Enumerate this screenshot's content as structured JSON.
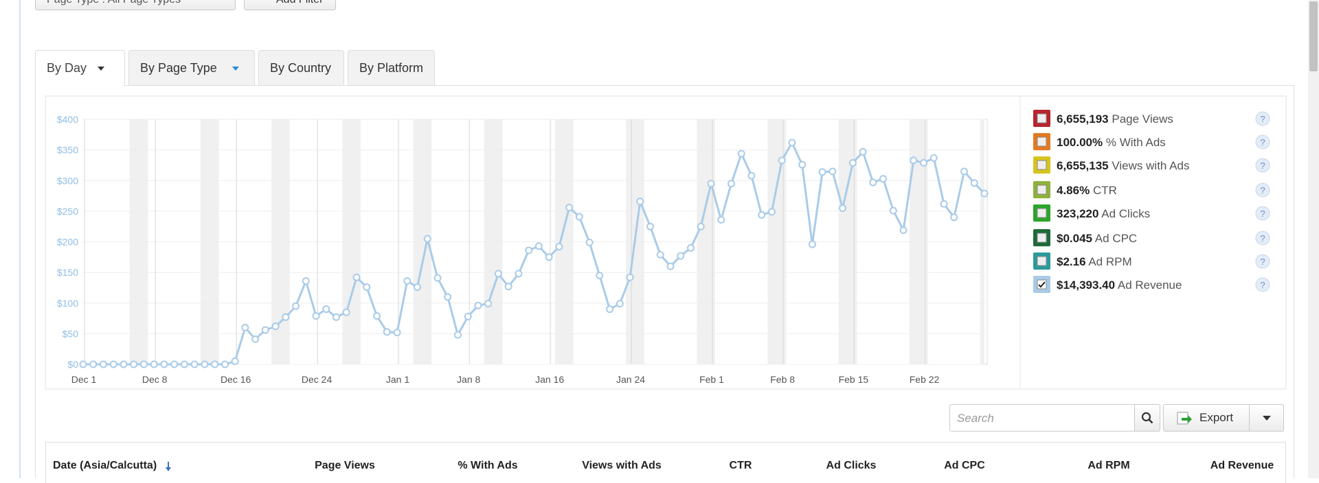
{
  "filters": {
    "page_type": "Page Type : All Page Types",
    "add_filter": "Add Filter"
  },
  "tabs": [
    "By Day",
    "By Page Type",
    "By Country",
    "By Platform"
  ],
  "chart_data": {
    "type": "line",
    "color": "#a9cbe8",
    "categories": [
      "Dec 1",
      null,
      null,
      null,
      null,
      null,
      null,
      "Dec 8",
      null,
      null,
      null,
      null,
      null,
      null,
      null,
      "Dec 16",
      null,
      null,
      null,
      null,
      null,
      null,
      null,
      "Dec 24",
      null,
      null,
      null,
      null,
      null,
      null,
      null,
      "Jan 1",
      null,
      null,
      null,
      null,
      null,
      null,
      "Jan 8",
      null,
      null,
      null,
      null,
      null,
      null,
      null,
      "Jan 16",
      null,
      null,
      null,
      null,
      null,
      null,
      null,
      "Jan 24",
      null,
      null,
      null,
      null,
      null,
      null,
      null,
      "Feb 1",
      null,
      null,
      null,
      null,
      null,
      null,
      "Feb 8",
      null,
      null,
      null,
      null,
      null,
      null,
      "Feb 15",
      null,
      null,
      null,
      null,
      null,
      null,
      "Feb 22",
      null,
      null,
      null,
      null,
      null,
      null
    ],
    "values": [
      0,
      0,
      0,
      0,
      0,
      0,
      0,
      0,
      0,
      0,
      0,
      0,
      0,
      0,
      0,
      5,
      60,
      41,
      56,
      62,
      77,
      95,
      136,
      79,
      90,
      77,
      85,
      142,
      126,
      79,
      53,
      52,
      136,
      126,
      205,
      141,
      110,
      48,
      78,
      96,
      99,
      148,
      127,
      148,
      186,
      193,
      175,
      192,
      256,
      241,
      199,
      145,
      90,
      99,
      142,
      266,
      225,
      179,
      160,
      177,
      190,
      225,
      295,
      236,
      295,
      344,
      308,
      244,
      249,
      333,
      362,
      326,
      196,
      314,
      315,
      255,
      329,
      347,
      297,
      303,
      251,
      219,
      333,
      329,
      337,
      262,
      240,
      315,
      296,
      279
    ],
    "ylim": [
      0,
      400
    ],
    "yticks": [
      {
        "value": 0,
        "label": "$0"
      },
      {
        "value": 50,
        "label": "$50"
      },
      {
        "value": 100,
        "label": "$100"
      },
      {
        "value": 150,
        "label": "$150"
      },
      {
        "value": 200,
        "label": "$200"
      },
      {
        "value": 250,
        "label": "$250"
      },
      {
        "value": 300,
        "label": "$300"
      },
      {
        "value": 350,
        "label": "$350"
      },
      {
        "value": 400,
        "label": "$400"
      }
    ],
    "grid": true
  },
  "legend": [
    {
      "value": "6,655,193",
      "label": "Page Views",
      "color": "#b8242f",
      "checked": false
    },
    {
      "value": "100.00%",
      "label": "% With Ads",
      "color": "#e27a22",
      "checked": false
    },
    {
      "value": "6,655,135",
      "label": "Views with Ads",
      "color": "#d6c41c",
      "checked": false
    },
    {
      "value": "4.86%",
      "label": "CTR",
      "color": "#8eb23c",
      "checked": false
    },
    {
      "value": "323,220",
      "label": "Ad Clicks",
      "color": "#2ba42c",
      "checked": false
    },
    {
      "value": "$0.045",
      "label": "Ad CPC",
      "color": "#1f6a3a",
      "checked": false
    },
    {
      "value": "$2.16",
      "label": "Ad RPM",
      "color": "#2b9a9b",
      "checked": false
    },
    {
      "value": "$14,393.40",
      "label": "Ad Revenue",
      "color": "#a9cbe8",
      "checked": true
    }
  ],
  "toolbar": {
    "search": "Search",
    "export": "Export"
  },
  "table": {
    "headers": [
      "Date (Asia/Calcutta)",
      "Page Views",
      "% With Ads",
      "Views with Ads",
      "CTR",
      "Ad Clicks",
      "Ad CPC",
      "Ad RPM",
      "Ad Revenue"
    ]
  }
}
